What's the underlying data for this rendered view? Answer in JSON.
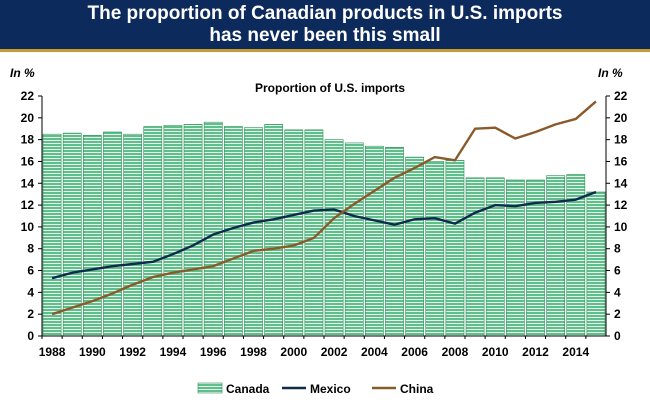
{
  "header": {
    "title_line1": "The proportion of Canadian products in U.S. imports",
    "title_line2": "has never been this small"
  },
  "colors": {
    "banner_bg": "#0d2a5c",
    "banner_border": "#c79a33",
    "canada": "#5fbf8a",
    "mexico": "#102a4c",
    "china": "#8b5a2b"
  },
  "chart_data": {
    "type": "bar+line",
    "title": "Proportion of U.S. imports",
    "left_axis_label": "In %",
    "right_axis_label": "In %",
    "ylim": [
      0,
      22
    ],
    "yticks": [
      0,
      2,
      4,
      6,
      8,
      10,
      12,
      14,
      16,
      18,
      20,
      22
    ],
    "xticks": [
      "1988",
      "1990",
      "1992",
      "1994",
      "1996",
      "1998",
      "2000",
      "2002",
      "2004",
      "2006",
      "2008",
      "2010",
      "2012",
      "2014"
    ],
    "years": [
      1988,
      1989,
      1990,
      1991,
      1992,
      1993,
      1994,
      1995,
      1996,
      1997,
      1998,
      1999,
      2000,
      2001,
      2002,
      2003,
      2004,
      2005,
      2006,
      2007,
      2008,
      2009,
      2010,
      2011,
      2012,
      2013,
      2014,
      2015
    ],
    "series": [
      {
        "name": "Canada",
        "kind": "bar",
        "values": [
          18.5,
          18.6,
          18.4,
          18.7,
          18.5,
          19.2,
          19.3,
          19.4,
          19.6,
          19.2,
          19.1,
          19.4,
          18.9,
          18.9,
          18.0,
          17.7,
          17.4,
          17.3,
          16.4,
          16.0,
          16.1,
          14.5,
          14.5,
          14.3,
          14.3,
          14.7,
          14.8,
          13.2
        ]
      },
      {
        "name": "Mexico",
        "kind": "line",
        "values": [
          5.3,
          5.8,
          6.1,
          6.4,
          6.6,
          6.8,
          7.5,
          8.3,
          9.3,
          9.9,
          10.4,
          10.7,
          11.1,
          11.5,
          11.6,
          11.0,
          10.6,
          10.2,
          10.7,
          10.8,
          10.3,
          11.3,
          12.0,
          11.9,
          12.2,
          12.3,
          12.5,
          13.2
        ]
      },
      {
        "name": "China",
        "kind": "line",
        "values": [
          2.0,
          2.6,
          3.2,
          3.9,
          4.7,
          5.4,
          5.8,
          6.1,
          6.4,
          7.1,
          7.8,
          8.0,
          8.3,
          9.0,
          10.8,
          12.1,
          13.3,
          14.5,
          15.4,
          16.4,
          16.1,
          19.0,
          19.1,
          18.1,
          18.7,
          19.4,
          19.9,
          21.5
        ]
      }
    ],
    "legend": [
      "Canada",
      "Mexico",
      "China"
    ],
    "legend_position": "bottom",
    "grid": false
  }
}
